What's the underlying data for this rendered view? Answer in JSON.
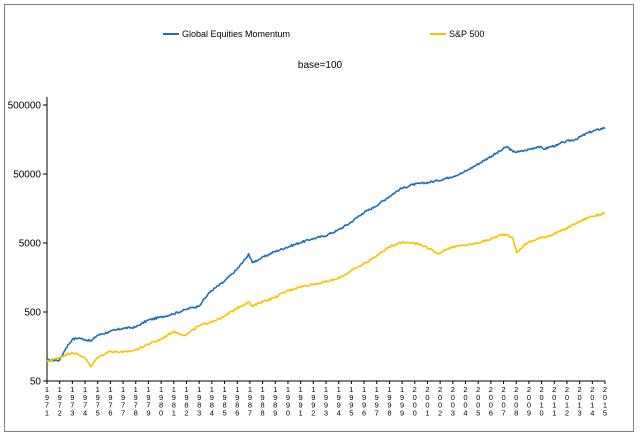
{
  "chart_data": {
    "type": "line",
    "subtitle": "base=100",
    "y_scale": "log",
    "ylim": [
      50,
      500000
    ],
    "y_ticks": [
      {
        "value": 50,
        "label": "50"
      },
      {
        "value": 500,
        "label": "500"
      },
      {
        "value": 5000,
        "label": "5000"
      },
      {
        "value": 50000,
        "label": "50000"
      },
      {
        "value": 500000,
        "label": "500000"
      }
    ],
    "x_ticks": [
      "1971",
      "1972",
      "1973",
      "1974",
      "1975",
      "1976",
      "1977",
      "1978",
      "1979",
      "1980",
      "1981",
      "1982",
      "1983",
      "1984",
      "1985",
      "1986",
      "1987",
      "1988",
      "1989",
      "1990",
      "1991",
      "1992",
      "1993",
      "1994",
      "1995",
      "1996",
      "1997",
      "1998",
      "1999",
      "2000",
      "2001",
      "2002",
      "2003",
      "2004",
      "2005",
      "2006",
      "2007",
      "2008",
      "2009",
      "2010",
      "2011",
      "2012",
      "2013",
      "2014",
      "2015"
    ],
    "legend_position": "top",
    "grid": false,
    "series": [
      {
        "name": "Global Equities Momentum",
        "color": "#1f6fb4",
        "x": [
          1971,
          1972,
          1972.5,
          1973,
          1973.5,
          1974,
          1974.5,
          1975,
          1976,
          1977,
          1978,
          1979,
          1980,
          1981,
          1982,
          1982.5,
          1983,
          1984,
          1985,
          1986,
          1986.8,
          1987,
          1987.3,
          1988,
          1989,
          1990,
          1991,
          1992,
          1993,
          1994,
          1995,
          1996,
          1997,
          1998,
          1999,
          2000,
          2001,
          2002,
          2003,
          2004,
          2005,
          2006,
          2007,
          2007.5,
          2008,
          2008.5,
          2009,
          2010,
          2010.5,
          2011,
          2011.5,
          2012,
          2013,
          2014,
          2015.3
        ],
        "y": [
          100,
          100,
          150,
          200,
          210,
          200,
          190,
          230,
          260,
          290,
          300,
          380,
          420,
          470,
          540,
          580,
          600,
          1000,
          1350,
          2000,
          3000,
          3500,
          2600,
          3000,
          3700,
          4300,
          5000,
          5700,
          6300,
          7500,
          9600,
          13300,
          16700,
          22400,
          30000,
          35000,
          37000,
          40000,
          45000,
          52000,
          66000,
          85000,
          108000,
          125000,
          105000,
          105000,
          110000,
          125000,
          115000,
          125000,
          130000,
          145000,
          160000,
          200000,
          235000
        ]
      },
      {
        "name": "S&P 500",
        "color": "#f5c400",
        "x": [
          1971,
          1972,
          1973,
          1974,
          1974.5,
          1975,
          1976,
          1977,
          1978,
          1979,
          1980,
          1981,
          1982,
          1983,
          1984,
          1985,
          1986,
          1987,
          1987.3,
          1988,
          1989,
          1990,
          1991,
          1992,
          1993,
          1994,
          1995,
          1996,
          1997,
          1998,
          1999,
          2000,
          2001,
          2002,
          2003,
          2004,
          2005,
          2006,
          2007,
          2007.5,
          2008,
          2008.3,
          2009,
          2010,
          2011,
          2012,
          2013,
          2014,
          2015.3
        ],
        "y": [
          95,
          110,
          130,
          110,
          80,
          110,
          135,
          130,
          140,
          170,
          200,
          260,
          230,
          310,
          360,
          420,
          560,
          700,
          600,
          700,
          800,
          1000,
          1150,
          1250,
          1350,
          1500,
          1900,
          2400,
          3100,
          4200,
          5100,
          5100,
          4500,
          3500,
          4300,
          4600,
          4900,
          5500,
          6500,
          6700,
          5800,
          3600,
          4900,
          5800,
          6500,
          7700,
          9700,
          11800,
          13500
        ]
      }
    ]
  }
}
